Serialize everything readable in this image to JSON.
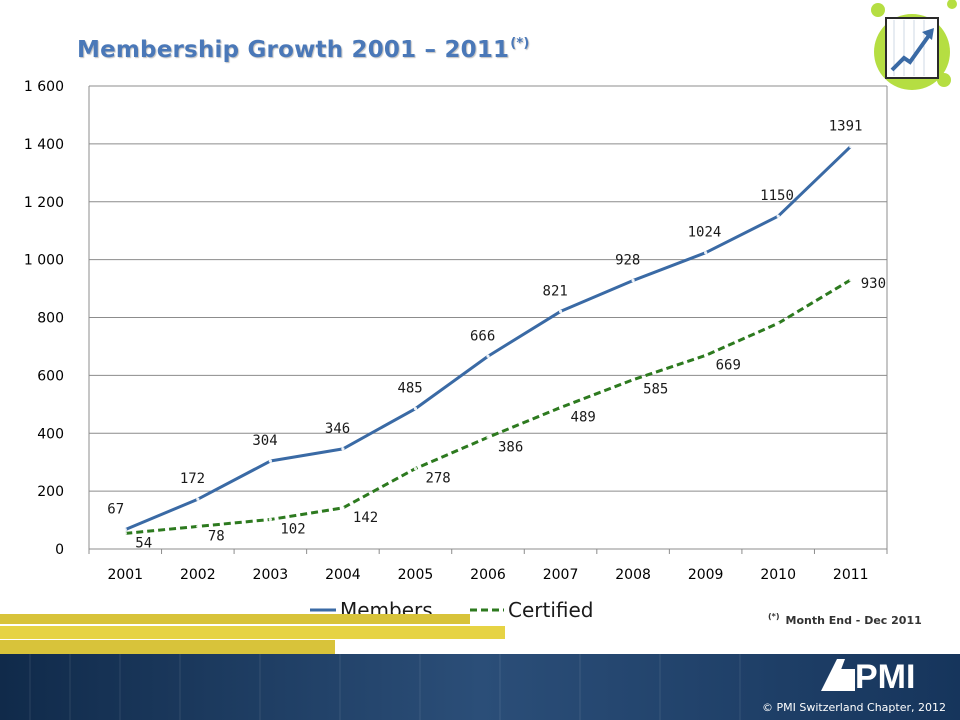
{
  "title": "Membership Growth 2001 – 2011",
  "title_superscript": "(*)",
  "footnote": {
    "marker": "(*)",
    "text": "Month End  - Dec 2011"
  },
  "copyright": "© PMI Switzerland Chapter, 2012",
  "logo_text": "PMI",
  "colors": {
    "title": "#4a78b8",
    "members_line": "#3a6aa5",
    "certified_line": "#2d7a1f",
    "gridline": "#8c8c8c",
    "bottom_band": "#1f3a5f",
    "stripe_yellow": "#d8c33a",
    "corner_green": "#b5de42"
  },
  "chart_data": {
    "type": "line",
    "categories": [
      "2001",
      "2002",
      "2003",
      "2004",
      "2005",
      "2006",
      "2007",
      "2008",
      "2009",
      "2010",
      "2011"
    ],
    "ylim": [
      0,
      1600
    ],
    "yticks": [
      0,
      200,
      400,
      600,
      800,
      1000,
      1200,
      1400,
      1600
    ],
    "ytick_labels": [
      "0",
      "200",
      "400",
      "600",
      "800",
      "1 000",
      "1 200",
      "1 400",
      "1 600"
    ],
    "grid": true,
    "legend_position": "bottom",
    "series": [
      {
        "name": "Members",
        "values": [
          67,
          172,
          304,
          346,
          485,
          666,
          821,
          928,
          1024,
          1150,
          1391
        ],
        "labels": [
          "67",
          "172",
          "304",
          "346",
          "485",
          "666",
          "821",
          "928",
          "1024",
          "1150",
          "1391"
        ],
        "style": "solid"
      },
      {
        "name": "Certified",
        "values": [
          54,
          78,
          102,
          142,
          278,
          386,
          489,
          585,
          669,
          780,
          930
        ],
        "labels": [
          "54",
          "78",
          "102",
          "142",
          "278",
          "386",
          "489",
          "585",
          "669",
          "",
          "930"
        ],
        "style": "dashed"
      }
    ]
  }
}
